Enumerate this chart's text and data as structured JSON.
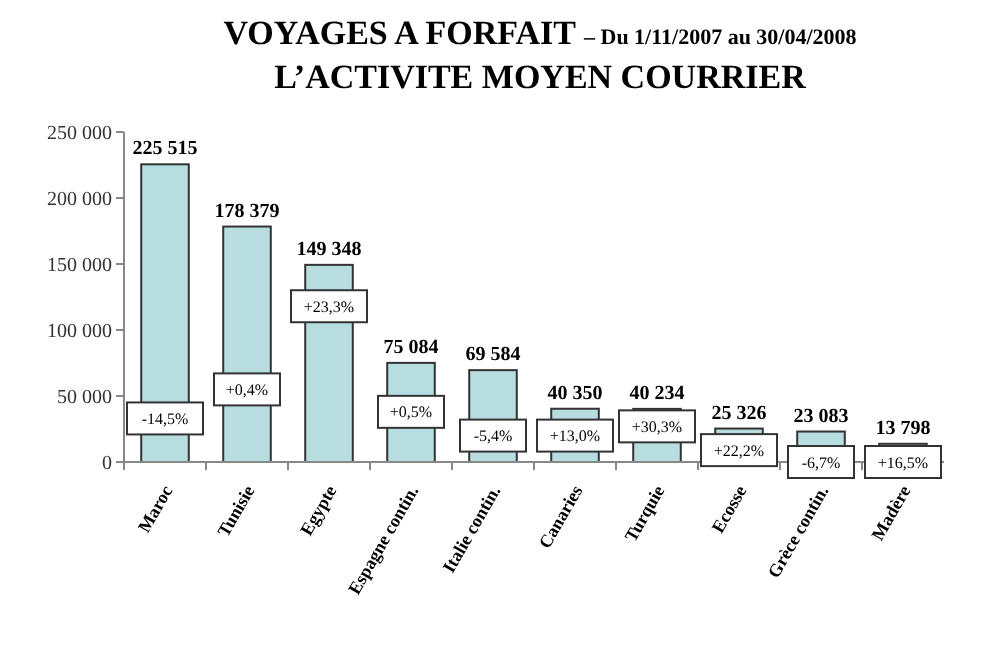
{
  "chart_data": {
    "type": "bar",
    "title": "VOYAGES A FORFAIT",
    "subtitle": "– Du 1/11/2007 au 30/04/2008",
    "categories": [
      "Maroc",
      "Tunisie",
      "Egypte",
      "Espagne contin.",
      "Italie contin.",
      "Canaries",
      "Turquie",
      "Ecosse",
      "Grèce contin.",
      "Madère"
    ],
    "values": [
      225515,
      178379,
      149348,
      75084,
      69584,
      40350,
      40234,
      25326,
      23083,
      13798
    ],
    "value_labels": [
      "225 515",
      "178 379",
      "149 348",
      "75 084",
      "69 584",
      "40 350",
      "40 234",
      "25 326",
      "23 083",
      "13 798"
    ],
    "color": "#b7dde0",
    "ylim": [
      0,
      250000
    ],
    "yticks": [
      {
        "value": 0,
        "label": "0"
      },
      {
        "value": 50000,
        "label": "50 000"
      },
      {
        "value": 100000,
        "label": "100 000"
      },
      {
        "value": 150000,
        "label": "150 000"
      },
      {
        "value": 200000,
        "label": "200 000"
      },
      {
        "value": 250000,
        "label": "250 000"
      }
    ],
    "annotations": [
      "L’ACTIVITE MOYEN COURRIER",
      {
        "text": "-14,5%",
        "x": "Maroc",
        "y": 33000
      },
      {
        "text": "+0,4%",
        "x": "Tunisie",
        "y": 55000
      },
      {
        "text": "+23,3%",
        "x": "Egypte",
        "y": 118000
      },
      {
        "text": "+0,5%",
        "x": "Espagne contin.",
        "y": 38000
      },
      {
        "text": "-5,4%",
        "x": "Italie contin.",
        "y": 20000
      },
      {
        "text": "+13,0%",
        "x": "Canaries",
        "y": 20000
      },
      {
        "text": "+30,3%",
        "x": "Turquie",
        "y": 27000
      },
      {
        "text": "+22,2%",
        "x": "Ecosse",
        "y": 9000
      },
      {
        "text": "-6,7%",
        "x": "Grèce contin.",
        "y": 0
      },
      {
        "text": "+16,5%",
        "x": "Madère",
        "y": 0
      }
    ]
  }
}
